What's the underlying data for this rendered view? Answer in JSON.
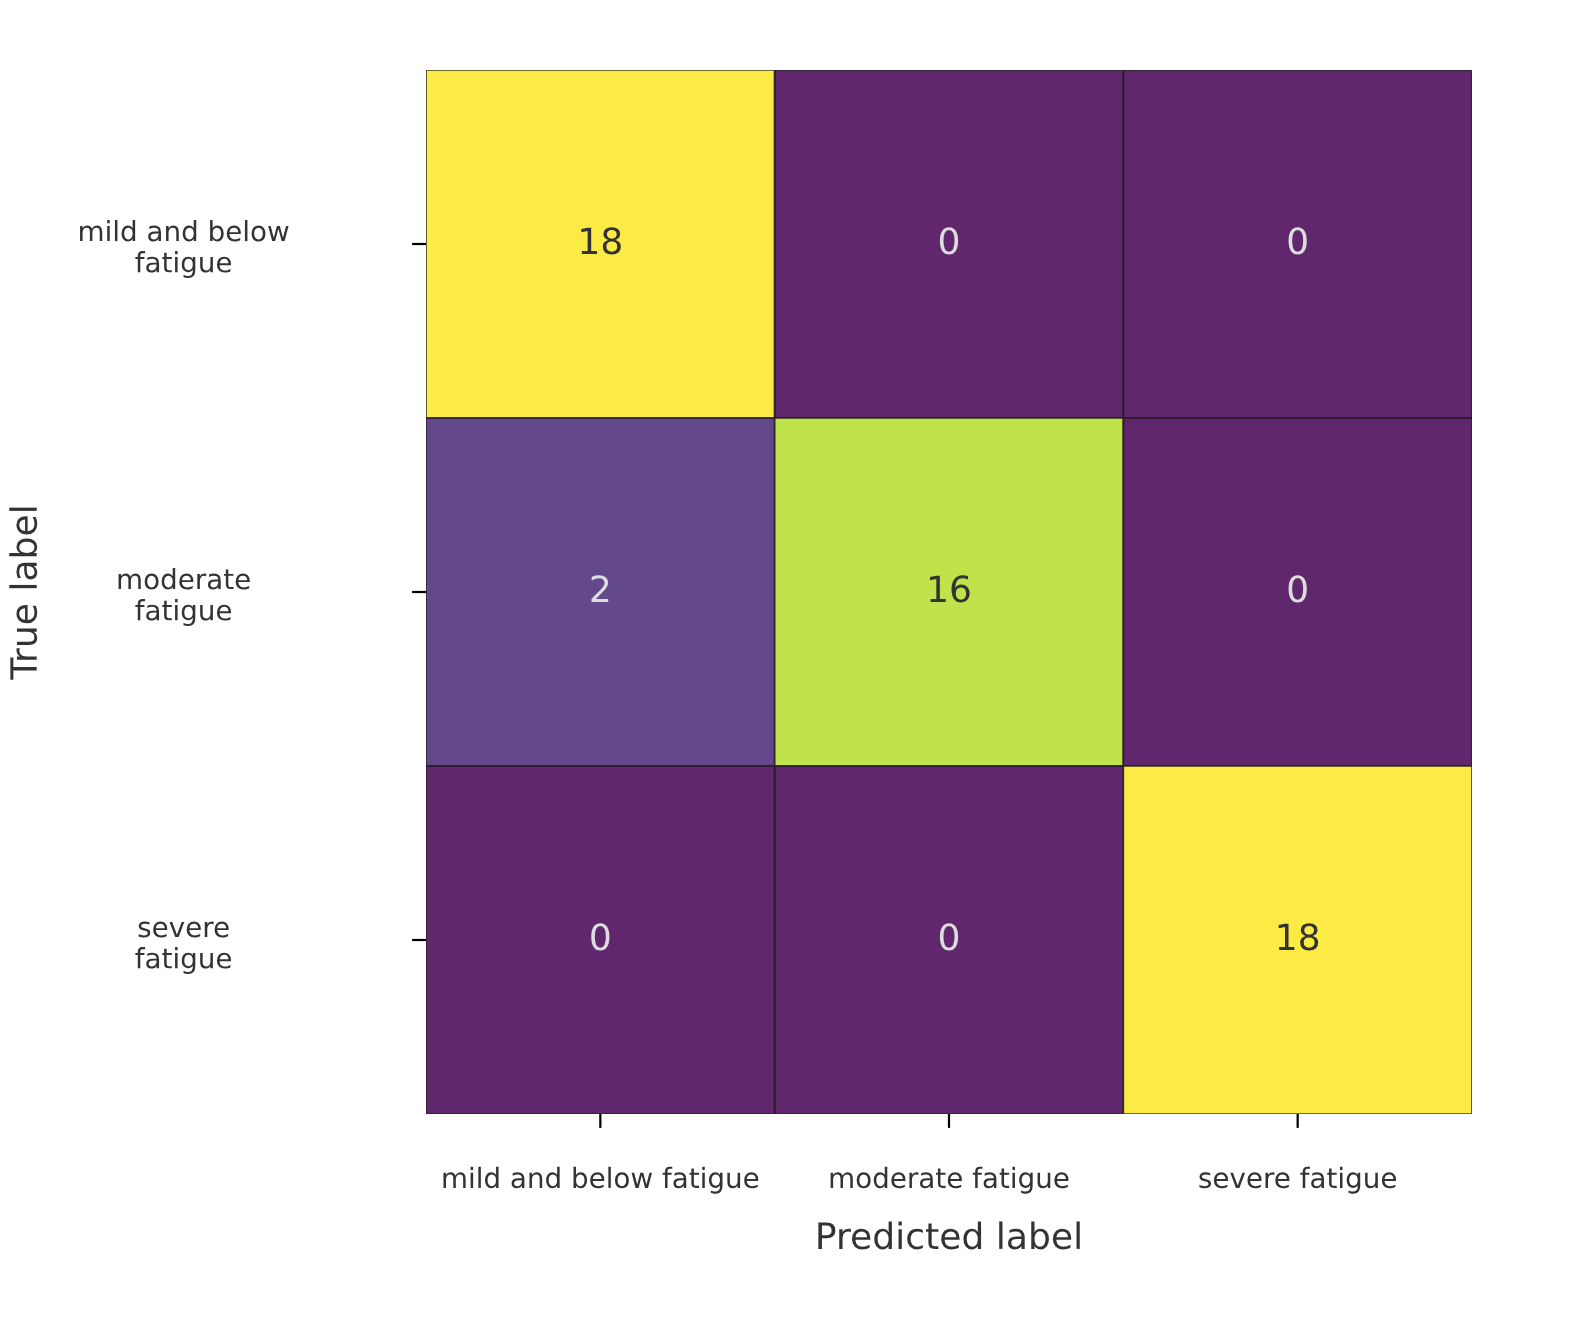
{
  "chart_data": {
    "type": "heatmap",
    "xlabel": "Predicted label",
    "ylabel": "True label",
    "categories": [
      "mild and below fatigue",
      "moderate fatigue",
      "severe fatigue"
    ],
    "y_categories": [
      "mild and below\nfatigue",
      "moderate\nfatigue",
      "severe\nfatigue"
    ],
    "cells": [
      [
        18,
        0,
        0
      ],
      [
        2,
        16,
        0
      ],
      [
        0,
        0,
        18
      ]
    ],
    "data_labels": true
  }
}
